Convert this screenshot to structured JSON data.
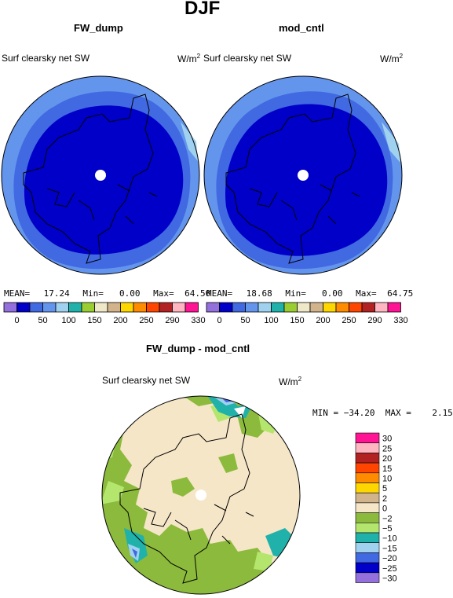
{
  "figure": {
    "title": "DJF"
  },
  "panels": [
    {
      "name": "FW_dump",
      "field_label": "Surf clearsky net SW",
      "units": "W/m",
      "units_exp": "2",
      "stats": {
        "mean_label": "MEAN=",
        "mean_value": "17.24",
        "min_label": "Min=",
        "min_value": "0.00",
        "max_label": "Max=",
        "max_value": "64.50"
      }
    },
    {
      "name": "mod_cntl",
      "field_label": "Surf clearsky net SW",
      "units": "W/m",
      "units_exp": "2",
      "stats": {
        "mean_label": "MEAN=",
        "mean_value": "18.68",
        "min_label": "Min=",
        "min_value": "0.00",
        "max_label": "Max=",
        "max_value": "64.75"
      }
    }
  ],
  "diff_panel": {
    "name": "FW_dump - mod_cntl",
    "field_label": "Surf clearsky net SW",
    "units": "W/m",
    "units_exp": "2",
    "minmax_text": "MIN = −34.20  MAX =    2.15"
  },
  "top_colorbar": {
    "colors": [
      "#9370db",
      "#0000c8",
      "#4169e1",
      "#6495ed",
      "#a0d2f0",
      "#20b2aa",
      "#9acd32",
      "#eee8c8",
      "#d2b48c",
      "#ffd700",
      "#ff8c00",
      "#ff4500",
      "#b22222",
      "#ffb6c1",
      "#ff1493"
    ],
    "tick_labels": [
      "0",
      "50",
      "100",
      "150",
      "200",
      "250",
      "290",
      "330"
    ]
  },
  "diff_colorbar": {
    "colors": [
      "#ff1493",
      "#ffb6c1",
      "#b22222",
      "#ff4500",
      "#ff8c00",
      "#ffd700",
      "#d2b48c",
      "#f5e6c8",
      "#8cba3c",
      "#b4e66e",
      "#20b2aa",
      "#a0d2f0",
      "#4169e1",
      "#0000c8",
      "#9370db"
    ],
    "tick_labels": [
      "30",
      "25",
      "20",
      "15",
      "10",
      "5",
      "2",
      "0",
      "−2",
      "−5",
      "−10",
      "−15",
      "−20",
      "−25",
      "−30"
    ]
  },
  "chart_data": [
    {
      "type": "heatmap",
      "title": "FW_dump",
      "subtitle": "Surf clearsky net SW",
      "units": "W/m2",
      "projection": "polar stereographic (north pole)",
      "stats": {
        "mean": 17.24,
        "min": 0.0,
        "max": 64.5
      },
      "levels": [
        0,
        50,
        100,
        150,
        200,
        250,
        290,
        330
      ],
      "regions": [
        {
          "region": "central Arctic",
          "value_range": [
            0,
            50
          ]
        },
        {
          "region": "outer ring",
          "value_range": [
            50,
            100
          ]
        }
      ]
    },
    {
      "type": "heatmap",
      "title": "mod_cntl",
      "subtitle": "Surf clearsky net SW",
      "units": "W/m2",
      "projection": "polar stereographic (north pole)",
      "stats": {
        "mean": 18.68,
        "min": 0.0,
        "max": 64.75
      },
      "levels": [
        0,
        50,
        100,
        150,
        200,
        250,
        290,
        330
      ],
      "regions": [
        {
          "region": "central Arctic",
          "value_range": [
            0,
            50
          ]
        },
        {
          "region": "outer ring",
          "value_range": [
            50,
            100
          ]
        }
      ]
    },
    {
      "type": "heatmap",
      "title": "FW_dump - mod_cntl",
      "subtitle": "Surf clearsky net SW",
      "units": "W/m2",
      "projection": "polar stereographic (north pole)",
      "stats": {
        "min": -34.2,
        "max": 2.15
      },
      "levels": [
        -30,
        -25,
        -20,
        -15,
        -10,
        -5,
        -2,
        0,
        2,
        5,
        10,
        15,
        20,
        25,
        30
      ],
      "regions": [
        {
          "region": "central Arctic",
          "value_range": [
            -2,
            2
          ]
        },
        {
          "region": "land / coast",
          "value_range": [
            -5,
            -2
          ]
        },
        {
          "region": "ice edge",
          "value_range": [
            -30,
            -5
          ]
        }
      ]
    }
  ]
}
